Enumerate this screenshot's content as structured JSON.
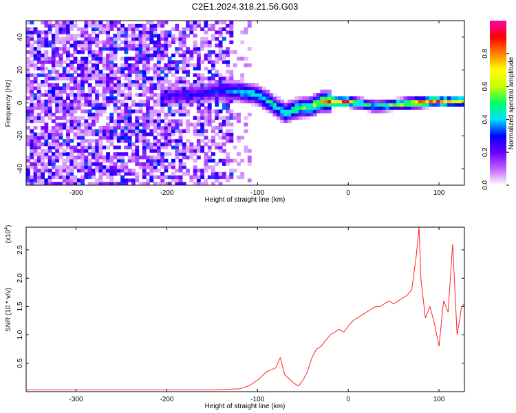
{
  "title": "C2E1.2024.318.21.56.G03",
  "chart_data": [
    {
      "type": "heatmap",
      "xlabel": "Height of straight line (km)",
      "ylabel": "Frequency (Hz)",
      "xlim": [
        -355,
        128
      ],
      "ylim": [
        -50,
        50
      ],
      "x_ticks": [
        -300,
        -200,
        -100,
        0,
        100
      ],
      "y_ticks": [
        -40,
        -20,
        0,
        20,
        40
      ],
      "colorbar": {
        "label": "Normalized spectral amplitude",
        "range": [
          0,
          1
        ],
        "ticks": [
          0.0,
          0.2,
          0.4,
          0.6,
          0.8
        ],
        "tick_labels": [
          "0.0",
          "0.2",
          "0.4",
          "0.6",
          "0.8"
        ],
        "colors": [
          "#ffffff",
          "#c060ff",
          "#6a00ff",
          "#0000ff",
          "#00e0ff",
          "#00ff60",
          "#c8ff00",
          "#ffff00",
          "#ff8000",
          "#ff0000",
          "#ff00b0"
        ]
      },
      "ridge": [
        {
          "x": -200,
          "f": 4,
          "a": 0.25
        },
        {
          "x": -180,
          "f": 5,
          "a": 0.3
        },
        {
          "x": -160,
          "f": 6,
          "a": 0.3
        },
        {
          "x": -140,
          "f": 8,
          "a": 0.35
        },
        {
          "x": -120,
          "f": 7,
          "a": 0.45
        },
        {
          "x": -100,
          "f": 5,
          "a": 0.5
        },
        {
          "x": -85,
          "f": 0,
          "a": 0.5
        },
        {
          "x": -70,
          "f": -6,
          "a": 0.5
        },
        {
          "x": -55,
          "f": -3,
          "a": 0.55
        },
        {
          "x": -40,
          "f": -2,
          "a": 0.6
        },
        {
          "x": -30,
          "f": 1,
          "a": 0.75
        },
        {
          "x": -15,
          "f": 1,
          "a": 0.9
        },
        {
          "x": 0,
          "f": 1,
          "a": 0.85
        },
        {
          "x": 10,
          "f": 0,
          "a": 0.6
        },
        {
          "x": 30,
          "f": -2,
          "a": 0.55
        },
        {
          "x": 50,
          "f": -1,
          "a": 0.6
        },
        {
          "x": 70,
          "f": 0,
          "a": 0.9
        },
        {
          "x": 90,
          "f": 1,
          "a": 0.9
        },
        {
          "x": 110,
          "f": 1,
          "a": 0.8
        },
        {
          "x": 128,
          "f": 1,
          "a": 0.75
        }
      ]
    },
    {
      "type": "line",
      "xlabel": "Height of straight line (km)",
      "ylabel": "SNR (10 * v/v)",
      "y_scale_label": "(x10",
      "y_scale_exponent": "4",
      "y_scale_close": ")",
      "xlim": [
        -355,
        128
      ],
      "ylim": [
        0,
        2.9
      ],
      "x_ticks": [
        -300,
        -200,
        -100,
        0,
        100
      ],
      "y_ticks": [
        0.5,
        1.0,
        1.5,
        2.0,
        2.5
      ],
      "y_tick_labels": [
        "0.5",
        "1.0",
        "1.5",
        "2.0",
        "2.5"
      ],
      "color": "#ff2020",
      "series": [
        {
          "x": [
            -355,
            -300,
            -250,
            -200,
            -150,
            -120,
            -110,
            -100,
            -90,
            -80,
            -75,
            -70,
            -60,
            -55,
            -50,
            -45,
            -40,
            -35,
            -30,
            -25,
            -20,
            -15,
            -10,
            -5,
            0,
            5,
            10,
            15,
            20,
            25,
            30,
            35,
            40,
            45,
            50,
            55,
            60,
            65,
            70,
            75,
            78,
            80,
            85,
            90,
            95,
            100,
            105,
            110,
            115,
            120,
            125,
            128
          ],
          "y": [
            0.03,
            0.03,
            0.03,
            0.03,
            0.03,
            0.05,
            0.1,
            0.2,
            0.35,
            0.42,
            0.6,
            0.3,
            0.15,
            0.1,
            0.2,
            0.35,
            0.6,
            0.75,
            0.8,
            0.9,
            1.0,
            1.05,
            1.1,
            1.05,
            1.15,
            1.25,
            1.3,
            1.35,
            1.4,
            1.45,
            1.5,
            1.5,
            1.55,
            1.6,
            1.55,
            1.6,
            1.65,
            1.7,
            1.8,
            2.4,
            2.9,
            2.0,
            1.3,
            1.5,
            1.2,
            0.8,
            1.6,
            1.4,
            2.6,
            1.0,
            1.5,
            1.55
          ]
        }
      ]
    }
  ]
}
